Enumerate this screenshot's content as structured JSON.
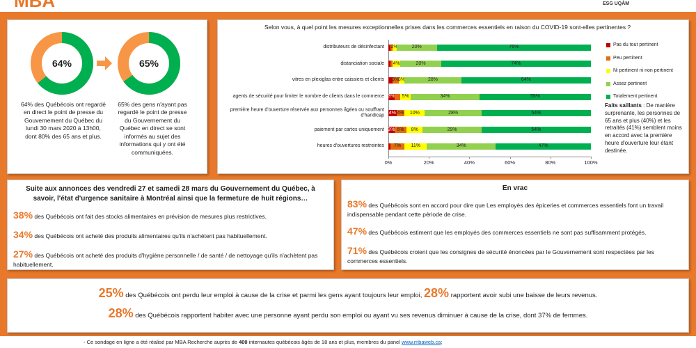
{
  "header": {
    "logo": "MBA",
    "partner": "ESG UQÀM"
  },
  "covid_viewing": {
    "donuts": [
      {
        "value": 64,
        "label": "64%",
        "text": "64% des Québécois ont regardé en direct le point de presse du Gouvernement du Québec du lundi 30 mars 2020 à 13h00, dont 80% des 65 ans et plus."
      },
      {
        "value": 65,
        "label": "65%",
        "text": "65% des gens n'ayant pas regardé le point de presse du Gouvernement du Québec en direct se sont informés au sujet des informations qui y ont été communiquées."
      }
    ]
  },
  "chart_data": {
    "type": "stacked_barh",
    "title": "Selon vous, à quel point les mesures exceptionnelles prises dans les commerces essentiels en raison du COVID-19 sont-elles pertinentes ?",
    "categories": [
      "distributeurs de désinfectant",
      "distanciation sociale",
      "vitres en plexiglas entre caissiers et clients",
      "agents de sécurité pour limiter le nombre de clients dans le commerce",
      "première heure d'ouverture réservée aux personnes âgées ou souffrant d'handicap",
      "paiement par cartes uniquement",
      "heures d'ouvertures restreintes"
    ],
    "series": [
      {
        "name": "Pas du tout pertinent",
        "color": "#c00000",
        "values": [
          1,
          1,
          2,
          3,
          4,
          3,
          1
        ],
        "value_labels": [
          null,
          null,
          null,
          "3%",
          "4%",
          "3%",
          null
        ]
      },
      {
        "name": "Peu pertinent",
        "color": "#e46c0a",
        "values": [
          1,
          1,
          3,
          3,
          4,
          6,
          7
        ],
        "value_labels": [
          null,
          null,
          "3%",
          null,
          "4%",
          "6%",
          "7%"
        ]
      },
      {
        "name": "Ni pertinent ni non pertinent",
        "color": "#ffff00",
        "values": [
          2,
          4,
          3,
          5,
          10,
          8,
          11
        ],
        "value_labels": [
          "2%",
          "4%",
          "3%",
          "5%",
          "10%",
          "8%",
          "11%"
        ]
      },
      {
        "name": "Assez pertinent",
        "color": "#92d050",
        "values": [
          20,
          20,
          28,
          34,
          28,
          29,
          34
        ],
        "value_labels": [
          "20%",
          "20%",
          "28%",
          "34%",
          "28%",
          "29%",
          "34%"
        ]
      },
      {
        "name": "Totalement pertinent",
        "color": "#00b050",
        "values": [
          76,
          74,
          64,
          55,
          54,
          54,
          47
        ],
        "value_labels": [
          "76%",
          "74%",
          "64%",
          "55%",
          "54%",
          "54%",
          "47%"
        ]
      }
    ],
    "xlim": [
      0,
      100
    ],
    "xticks": [
      {
        "value": 0,
        "label": "0%"
      },
      {
        "value": 20,
        "label": "20%"
      },
      {
        "value": 40,
        "label": "40%"
      },
      {
        "value": 60,
        "label": "60%"
      },
      {
        "value": 80,
        "label": "80%"
      },
      {
        "value": 100,
        "label": "100%"
      }
    ],
    "legend": "right"
  },
  "highlights": {
    "title": "Faits saillants",
    "text": " : De manière surprenante, les personnes de 65 ans et plus (40%) et les retraités (41%) semblent moins en accord avec la première heure d'ouverture leur étant destinée."
  },
  "announcements": {
    "title": "Suite aux annonces des vendredi 27 et samedi 28 mars du Gouvernement du Québec, à savoir, l'état d'urgence sanitaire à Montréal ainsi que la fermeture de huit régions…",
    "items": [
      {
        "pct": "38%",
        "text": " des Québécois ont fait des stocks alimentaires en prévision de mesures plus restrictives."
      },
      {
        "pct": "34%",
        "text": " des Québécois ont acheté des produits alimentaires qu'ils n'achètent pas habituellement."
      },
      {
        "pct": "27%",
        "text": " des Québécois ont acheté des produits d'hygiène personnelle / de santé / de nettoyage qu'ils n'achètent pas habituellement."
      }
    ]
  },
  "misc": {
    "title": "En vrac",
    "items": [
      {
        "pct": "83%",
        "text": " des Québécois sont en accord pour dire que Les employés des épiceries et commerces essentiels font un travail indispensable pendant cette période de crise."
      },
      {
        "pct": "47%",
        "text": " des Québécois estiment que les employés des commerces essentiels ne sont pas suffisamment protégés."
      },
      {
        "pct": "71%",
        "text": " des Québécois croient que les consignes de sécurité énoncées par le Gouvernement sont respectées par les commerces essentiels."
      }
    ]
  },
  "summary": {
    "lines": [
      [
        {
          "pct": "25%",
          "text": " des Québécois ont perdu leur emploi à cause de la crise et parmi les gens ayant toujours leur emploi, "
        },
        {
          "pct": "28%",
          "text": " rapportent avoir subi une baisse de leurs revenus."
        }
      ],
      [
        {
          "pct": "28%",
          "text": " des Québécois rapportent habiter avec une personne ayant perdu son emploi ou ayant vu ses revenus diminuer à cause de la crise, dont 37% de femmes."
        }
      ]
    ]
  },
  "footer": {
    "before": "-   Ce sondage en ligne a été réalisé par MBA Recherche auprès de ",
    "count": "400",
    "after": " internautes québécois âgés de 18 ans et plus, membres du panel ",
    "link": "www.mbaweb.ca",
    "end": ";"
  }
}
